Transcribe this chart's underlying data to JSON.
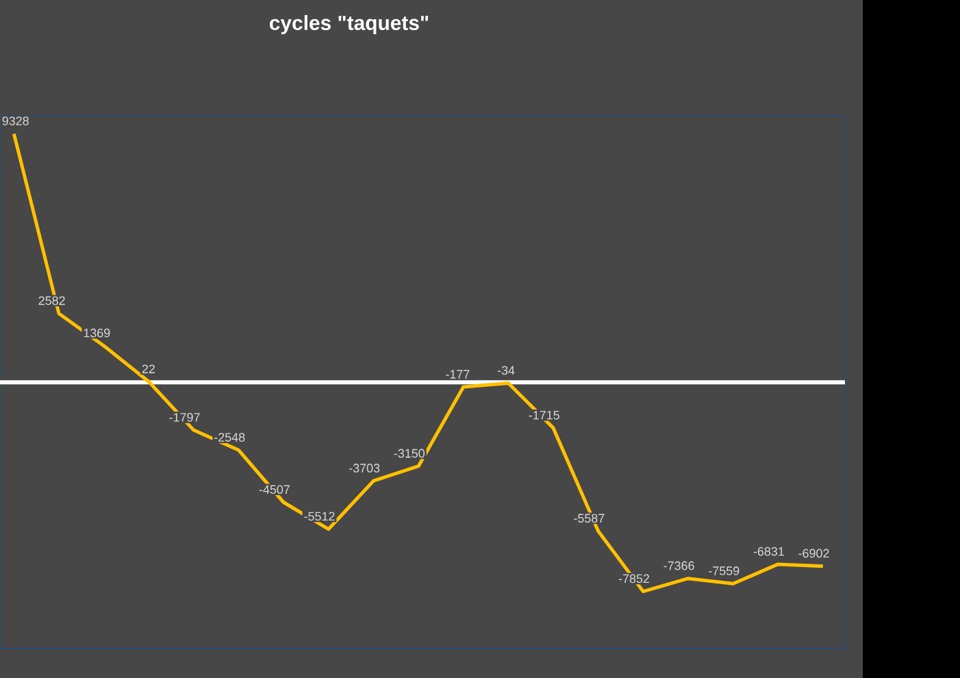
{
  "chart_data": {
    "type": "line",
    "title": "cycles \"taquets\"",
    "categories": [
      null,
      null,
      null,
      null,
      null,
      null,
      null,
      null,
      null,
      null,
      null,
      null,
      null,
      null,
      null,
      null,
      null,
      null,
      null
    ],
    "values": [
      9328,
      2582,
      1369,
      22,
      -1797,
      -2548,
      -4507,
      -5512,
      -3703,
      -3150,
      -177,
      -34,
      -1715,
      -5587,
      -7852,
      -7366,
      -7559,
      -6831,
      -6902
    ],
    "color": "#ffc000",
    "data_labels": true,
    "ylim": [
      -10000,
      10000
    ],
    "ref_lines": [
      {
        "axis": "y",
        "value": 0,
        "color": "#ffffff"
      }
    ]
  }
}
